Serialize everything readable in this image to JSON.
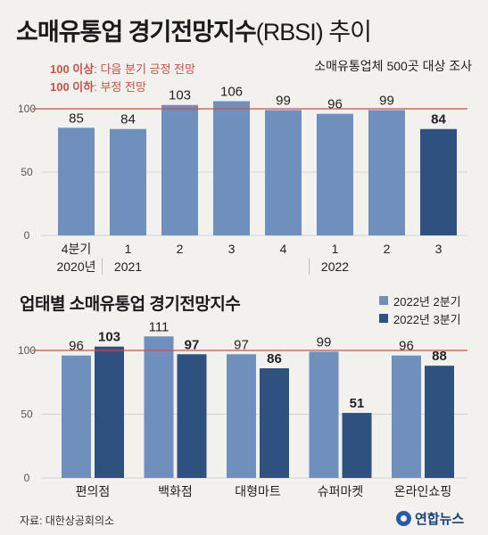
{
  "header": {
    "title": "소매유통업 경기전망지수",
    "title_suffix": "(RBSI) 추이",
    "subtitle": "소매유통업체 500곳 대상 조사",
    "note_above_num": "100 이상",
    "note_above_text": ": 다음 분기 긍정 전망",
    "note_below_num": "100 이하",
    "note_below_text": ": 부정 전망"
  },
  "footer": {
    "source": "자료: 대한상공회의소",
    "logo": "연합뉴스"
  },
  "colors": {
    "light_bar": "#6f8fbd",
    "dark_bar": "#2e517f",
    "reference_line": "#c9514a",
    "grid": "#d2d2d2"
  },
  "chart_data": [
    {
      "type": "bar",
      "title": "소매유통업 경기전망지수(RBSI) 추이",
      "categories": [
        "4분기",
        "1",
        "2",
        "3",
        "4",
        "1",
        "2",
        "3"
      ],
      "year_labels": [
        "2020년",
        "2021",
        "2022"
      ],
      "values": [
        85,
        84,
        103,
        106,
        99,
        96,
        99,
        84
      ],
      "highlight_index": 7,
      "ylim": [
        0,
        110
      ],
      "yticks": [
        0,
        50,
        100
      ],
      "reference_line": 100,
      "grid": true
    },
    {
      "type": "bar",
      "title": "업태별 소매유통업 경기전망지수",
      "categories": [
        "편의점",
        "백화점",
        "대형마트",
        "슈퍼마켓",
        "온라인쇼핑"
      ],
      "series": [
        {
          "name": "2022년 2분기",
          "values": [
            96,
            111,
            97,
            99,
            96
          ]
        },
        {
          "name": "2022년 3분기",
          "values": [
            103,
            97,
            86,
            51,
            88
          ]
        }
      ],
      "ylim": [
        0,
        115
      ],
      "yticks": [
        0,
        50,
        100
      ],
      "reference_line": 100,
      "grid": true,
      "legend": "top-right"
    }
  ]
}
